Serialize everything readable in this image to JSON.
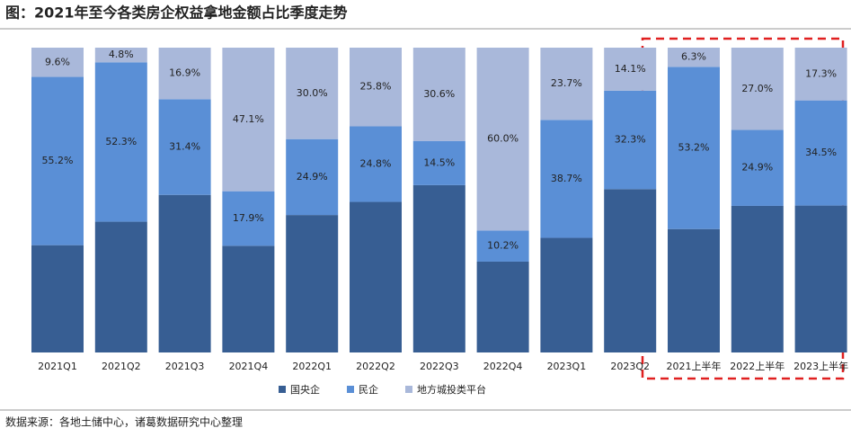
{
  "chart_data": {
    "type": "stacked-bar-percent",
    "title": "图：2021年至今各类房企权益拿地金额占比季度走势",
    "categories": [
      "2021Q1",
      "2021Q2",
      "2021Q3",
      "2021Q4",
      "2022Q1",
      "2022Q2",
      "2022Q3",
      "2022Q4",
      "2023Q1",
      "2023Q2",
      "2021上半年",
      "2022上半年",
      "2023上半年"
    ],
    "series": [
      {
        "name": "国央企",
        "color": "#375e93",
        "values": [
          35.2,
          42.9,
          51.7,
          35.0,
          45.1,
          49.4,
          54.9,
          29.8,
          37.6,
          53.6,
          40.5,
          48.1,
          48.2
        ]
      },
      {
        "name": "民企",
        "color": "#5a8fd6",
        "values": [
          55.2,
          52.3,
          31.4,
          17.9,
          24.9,
          24.8,
          14.5,
          10.2,
          38.7,
          32.3,
          53.2,
          24.9,
          34.5
        ],
        "value_labels": [
          "55.2%",
          "52.3%",
          "31.4%",
          "17.9%",
          "24.9%",
          "24.8%",
          "14.5%",
          "10.2%",
          "38.7%",
          "32.3%",
          "53.2%",
          "24.9%",
          "34.5%"
        ]
      },
      {
        "name": "地方城投类平台",
        "color": "#a9b8da",
        "values": [
          9.6,
          4.8,
          16.9,
          47.1,
          30.0,
          25.8,
          30.6,
          60.0,
          23.7,
          14.1,
          6.3,
          27.0,
          17.3
        ],
        "value_labels": [
          "9.6%",
          "4.8%",
          "16.9%",
          "47.1%",
          "30.0%",
          "25.8%",
          "30.6%",
          "60.0%",
          "23.7%",
          "14.1%",
          "6.3%",
          "27.0%",
          "17.3%"
        ]
      }
    ],
    "source": "数据来源：各地土储中心，诸葛数据研究中心整理"
  }
}
